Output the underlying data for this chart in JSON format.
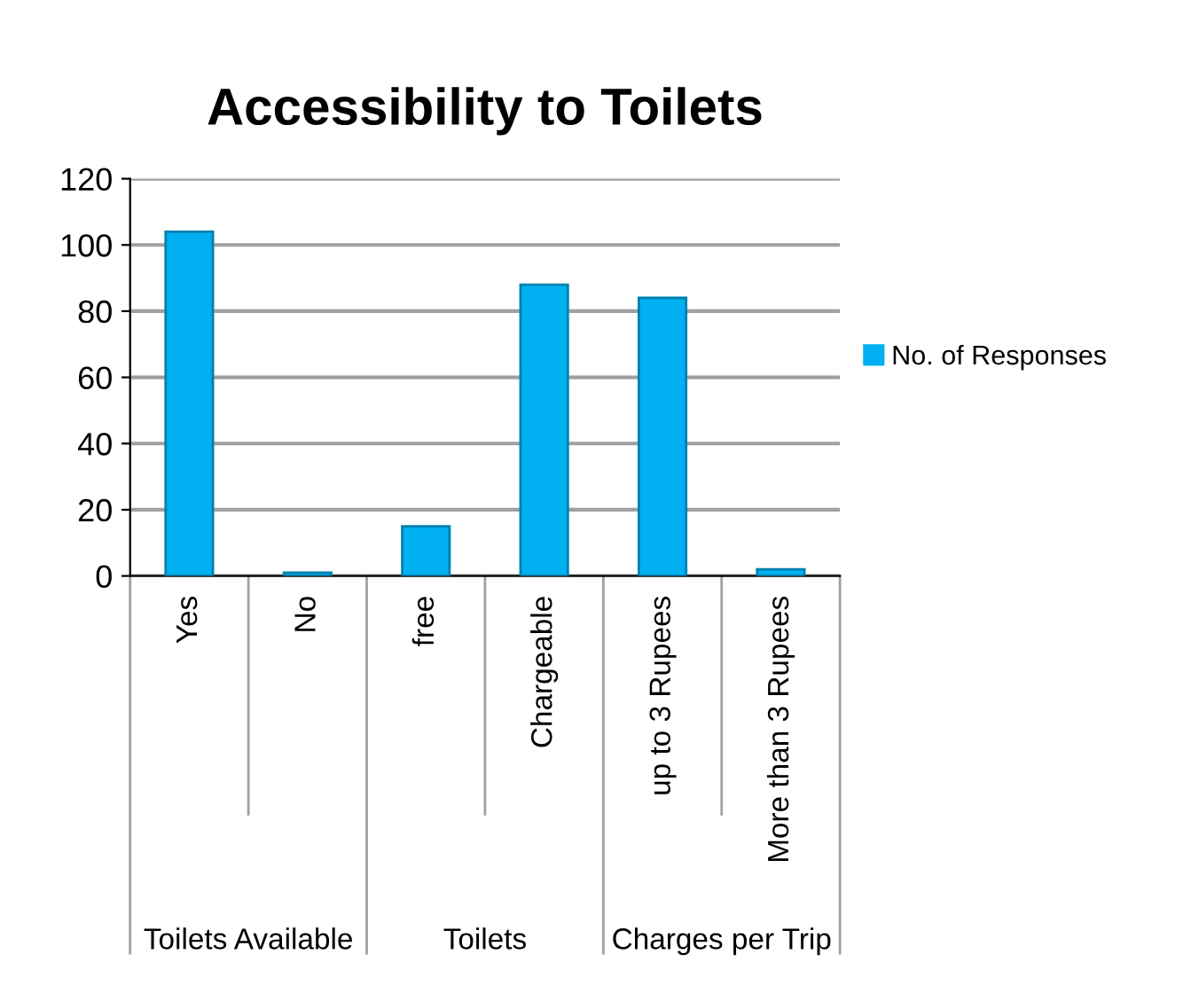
{
  "chart_data": {
    "type": "bar",
    "title": "Accessibility to Toilets",
    "categories": [
      "Yes",
      "No",
      "free",
      "Chargeable",
      "up to 3 Rupees",
      "More than 3 Rupees"
    ],
    "series": [
      {
        "name": "No. of Responses",
        "color": "#00b0f0",
        "values": [
          104,
          1,
          15,
          88,
          84,
          2
        ]
      }
    ],
    "annotations": [
      "Toilets Available",
      "Toilets",
      "Charges per Trip"
    ],
    "ylim": [
      0,
      120
    ],
    "yticks": [
      0,
      20,
      40,
      60,
      80,
      100,
      120
    ],
    "grid": "y",
    "legend": "right"
  }
}
